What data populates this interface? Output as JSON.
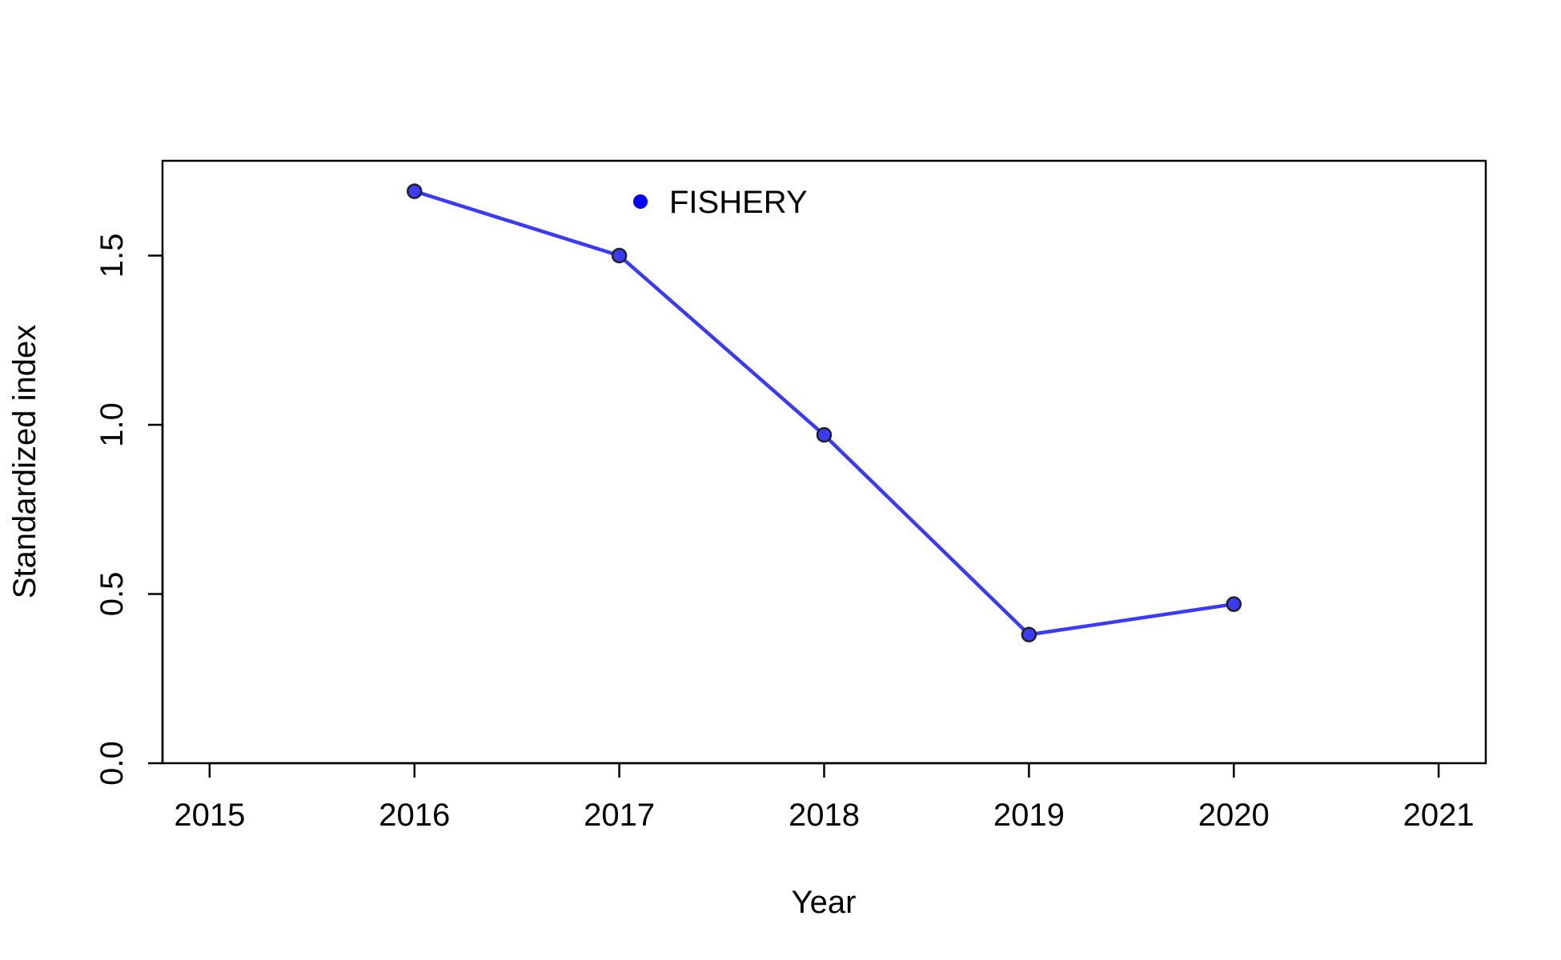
{
  "chart_data": {
    "type": "line",
    "xlabel": "Year",
    "ylabel": "Standardized index",
    "xlim": [
      2014.77,
      2021.23
    ],
    "ylim": [
      0.0,
      1.78
    ],
    "x_ticks": [
      "2015",
      "2016",
      "2017",
      "2018",
      "2019",
      "2020",
      "2021"
    ],
    "y_ticks": [
      "0.0",
      "0.5",
      "1.0",
      "1.5"
    ],
    "grid": false,
    "legend_position": "top-left",
    "series": [
      {
        "name": "FISHERY",
        "color": "#3b3bf5",
        "marker_color": "#3b3bf5",
        "x": [
          2016,
          2017,
          2018,
          2019,
          2020
        ],
        "y": [
          1.69,
          1.5,
          0.97,
          0.38,
          0.47
        ]
      }
    ]
  }
}
